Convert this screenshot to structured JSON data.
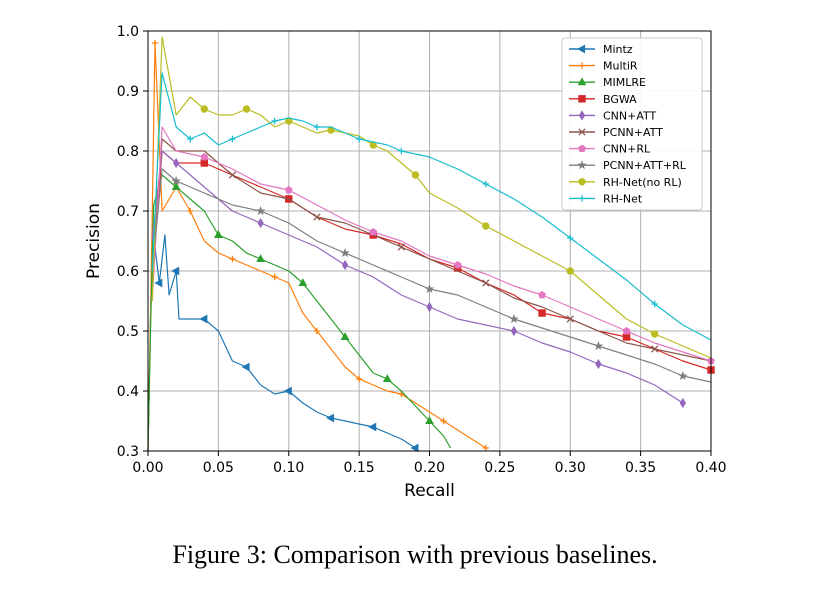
{
  "caption": "Figure 3: Comparison with previous baselines.",
  "chart_data": {
    "type": "line",
    "title": "",
    "xlabel": "Recall",
    "ylabel": "Precision",
    "xlim": [
      0.0,
      0.4
    ],
    "ylim": [
      0.3,
      1.0
    ],
    "xticks": [
      "0.00",
      "0.05",
      "0.10",
      "0.15",
      "0.20",
      "0.25",
      "0.30",
      "0.35",
      "0.40"
    ],
    "yticks": [
      "0.3",
      "0.4",
      "0.5",
      "0.6",
      "0.7",
      "0.8",
      "0.9",
      "1.0"
    ],
    "grid": true,
    "legend_position": "top-right",
    "series": [
      {
        "name": "Mintz",
        "color": "#1f77b4",
        "marker": "tri-left",
        "points": [
          [
            0.0,
            0.3
          ],
          [
            0.002,
            0.55
          ],
          [
            0.005,
            0.64
          ],
          [
            0.008,
            0.58
          ],
          [
            0.012,
            0.66
          ],
          [
            0.015,
            0.56
          ],
          [
            0.02,
            0.6
          ],
          [
            0.022,
            0.52
          ],
          [
            0.03,
            0.52
          ],
          [
            0.04,
            0.52
          ],
          [
            0.05,
            0.5
          ],
          [
            0.06,
            0.45
          ],
          [
            0.07,
            0.44
          ],
          [
            0.08,
            0.41
          ],
          [
            0.09,
            0.395
          ],
          [
            0.1,
            0.4
          ],
          [
            0.11,
            0.38
          ],
          [
            0.12,
            0.365
          ],
          [
            0.13,
            0.355
          ],
          [
            0.14,
            0.35
          ],
          [
            0.15,
            0.345
          ],
          [
            0.16,
            0.34
          ],
          [
            0.17,
            0.33
          ],
          [
            0.18,
            0.32
          ],
          [
            0.19,
            0.305
          ]
        ]
      },
      {
        "name": "MultiR",
        "color": "#ff7f0e",
        "marker": "plus",
        "points": [
          [
            0.0,
            0.3
          ],
          [
            0.002,
            0.55
          ],
          [
            0.005,
            0.98
          ],
          [
            0.01,
            0.7
          ],
          [
            0.02,
            0.74
          ],
          [
            0.03,
            0.7
          ],
          [
            0.04,
            0.65
          ],
          [
            0.05,
            0.63
          ],
          [
            0.06,
            0.62
          ],
          [
            0.07,
            0.61
          ],
          [
            0.08,
            0.6
          ],
          [
            0.09,
            0.59
          ],
          [
            0.1,
            0.58
          ],
          [
            0.11,
            0.53
          ],
          [
            0.12,
            0.5
          ],
          [
            0.13,
            0.47
          ],
          [
            0.14,
            0.44
          ],
          [
            0.15,
            0.42
          ],
          [
            0.16,
            0.41
          ],
          [
            0.17,
            0.4
          ],
          [
            0.18,
            0.395
          ],
          [
            0.19,
            0.38
          ],
          [
            0.2,
            0.365
          ],
          [
            0.21,
            0.35
          ],
          [
            0.22,
            0.335
          ],
          [
            0.23,
            0.32
          ],
          [
            0.24,
            0.305
          ]
        ]
      },
      {
        "name": "MIMLRE",
        "color": "#2ca02c",
        "marker": "tri-up",
        "points": [
          [
            0.0,
            0.3
          ],
          [
            0.002,
            0.52
          ],
          [
            0.004,
            0.71
          ],
          [
            0.01,
            0.76
          ],
          [
            0.02,
            0.74
          ],
          [
            0.03,
            0.72
          ],
          [
            0.04,
            0.7
          ],
          [
            0.05,
            0.66
          ],
          [
            0.06,
            0.65
          ],
          [
            0.07,
            0.63
          ],
          [
            0.08,
            0.62
          ],
          [
            0.09,
            0.61
          ],
          [
            0.1,
            0.6
          ],
          [
            0.11,
            0.58
          ],
          [
            0.12,
            0.55
          ],
          [
            0.13,
            0.52
          ],
          [
            0.14,
            0.49
          ],
          [
            0.15,
            0.46
          ],
          [
            0.16,
            0.43
          ],
          [
            0.17,
            0.42
          ],
          [
            0.18,
            0.4
          ],
          [
            0.19,
            0.375
          ],
          [
            0.2,
            0.35
          ],
          [
            0.21,
            0.325
          ],
          [
            0.215,
            0.305
          ]
        ]
      },
      {
        "name": "BGWA",
        "color": "#d62728",
        "marker": "square",
        "points": [
          [
            0.003,
            0.6
          ],
          [
            0.01,
            0.8
          ],
          [
            0.02,
            0.78
          ],
          [
            0.04,
            0.78
          ],
          [
            0.06,
            0.76
          ],
          [
            0.08,
            0.74
          ],
          [
            0.1,
            0.72
          ],
          [
            0.12,
            0.69
          ],
          [
            0.14,
            0.67
          ],
          [
            0.16,
            0.66
          ],
          [
            0.18,
            0.645
          ],
          [
            0.2,
            0.62
          ],
          [
            0.22,
            0.605
          ],
          [
            0.24,
            0.58
          ],
          [
            0.26,
            0.56
          ],
          [
            0.28,
            0.53
          ],
          [
            0.3,
            0.52
          ],
          [
            0.32,
            0.5
          ],
          [
            0.34,
            0.49
          ],
          [
            0.36,
            0.47
          ],
          [
            0.38,
            0.45
          ],
          [
            0.4,
            0.435
          ]
        ]
      },
      {
        "name": "CNN+ATT",
        "color": "#9467bd",
        "marker": "diamond",
        "points": [
          [
            0.003,
            0.65
          ],
          [
            0.01,
            0.8
          ],
          [
            0.02,
            0.78
          ],
          [
            0.04,
            0.74
          ],
          [
            0.06,
            0.7
          ],
          [
            0.08,
            0.68
          ],
          [
            0.1,
            0.66
          ],
          [
            0.12,
            0.64
          ],
          [
            0.14,
            0.61
          ],
          [
            0.16,
            0.59
          ],
          [
            0.18,
            0.56
          ],
          [
            0.2,
            0.54
          ],
          [
            0.22,
            0.52
          ],
          [
            0.24,
            0.51
          ],
          [
            0.26,
            0.5
          ],
          [
            0.28,
            0.48
          ],
          [
            0.3,
            0.465
          ],
          [
            0.32,
            0.445
          ],
          [
            0.34,
            0.43
          ],
          [
            0.36,
            0.41
          ],
          [
            0.38,
            0.38
          ]
        ]
      },
      {
        "name": "PCNN+ATT",
        "color": "#8c564b",
        "marker": "x",
        "points": [
          [
            0.003,
            0.6
          ],
          [
            0.01,
            0.82
          ],
          [
            0.02,
            0.8
          ],
          [
            0.04,
            0.8
          ],
          [
            0.06,
            0.76
          ],
          [
            0.08,
            0.73
          ],
          [
            0.1,
            0.72
          ],
          [
            0.12,
            0.69
          ],
          [
            0.14,
            0.68
          ],
          [
            0.16,
            0.66
          ],
          [
            0.18,
            0.64
          ],
          [
            0.2,
            0.62
          ],
          [
            0.22,
            0.6
          ],
          [
            0.24,
            0.58
          ],
          [
            0.26,
            0.555
          ],
          [
            0.28,
            0.54
          ],
          [
            0.3,
            0.52
          ],
          [
            0.32,
            0.5
          ],
          [
            0.34,
            0.48
          ],
          [
            0.36,
            0.47
          ],
          [
            0.38,
            0.46
          ],
          [
            0.4,
            0.45
          ]
        ]
      },
      {
        "name": "CNN+RL",
        "color": "#e377c2",
        "marker": "pentagon",
        "points": [
          [
            0.003,
            0.55
          ],
          [
            0.01,
            0.84
          ],
          [
            0.02,
            0.8
          ],
          [
            0.04,
            0.79
          ],
          [
            0.06,
            0.77
          ],
          [
            0.08,
            0.745
          ],
          [
            0.1,
            0.735
          ],
          [
            0.12,
            0.71
          ],
          [
            0.14,
            0.685
          ],
          [
            0.16,
            0.665
          ],
          [
            0.18,
            0.65
          ],
          [
            0.2,
            0.625
          ],
          [
            0.22,
            0.61
          ],
          [
            0.24,
            0.595
          ],
          [
            0.26,
            0.575
          ],
          [
            0.28,
            0.56
          ],
          [
            0.3,
            0.54
          ],
          [
            0.32,
            0.52
          ],
          [
            0.34,
            0.5
          ],
          [
            0.36,
            0.48
          ],
          [
            0.38,
            0.465
          ],
          [
            0.4,
            0.45
          ]
        ]
      },
      {
        "name": "PCNN+ATT+RL",
        "color": "#7f7f7f",
        "marker": "star",
        "points": [
          [
            0.003,
            0.6
          ],
          [
            0.01,
            0.77
          ],
          [
            0.02,
            0.75
          ],
          [
            0.04,
            0.73
          ],
          [
            0.06,
            0.71
          ],
          [
            0.08,
            0.7
          ],
          [
            0.1,
            0.68
          ],
          [
            0.12,
            0.65
          ],
          [
            0.14,
            0.63
          ],
          [
            0.16,
            0.61
          ],
          [
            0.18,
            0.59
          ],
          [
            0.2,
            0.57
          ],
          [
            0.22,
            0.56
          ],
          [
            0.24,
            0.54
          ],
          [
            0.26,
            0.52
          ],
          [
            0.28,
            0.505
          ],
          [
            0.3,
            0.49
          ],
          [
            0.32,
            0.475
          ],
          [
            0.34,
            0.46
          ],
          [
            0.36,
            0.445
          ],
          [
            0.38,
            0.425
          ],
          [
            0.4,
            0.415
          ]
        ]
      },
      {
        "name": "RH-Net(no RL)",
        "color": "#bcbd22",
        "marker": "circle",
        "points": [
          [
            0.003,
            0.55
          ],
          [
            0.01,
            0.99
          ],
          [
            0.02,
            0.86
          ],
          [
            0.03,
            0.89
          ],
          [
            0.04,
            0.87
          ],
          [
            0.05,
            0.86
          ],
          [
            0.06,
            0.86
          ],
          [
            0.07,
            0.87
          ],
          [
            0.08,
            0.86
          ],
          [
            0.09,
            0.84
          ],
          [
            0.1,
            0.85
          ],
          [
            0.11,
            0.84
          ],
          [
            0.12,
            0.83
          ],
          [
            0.13,
            0.835
          ],
          [
            0.14,
            0.83
          ],
          [
            0.15,
            0.825
          ],
          [
            0.16,
            0.81
          ],
          [
            0.17,
            0.8
          ],
          [
            0.18,
            0.78
          ],
          [
            0.19,
            0.76
          ],
          [
            0.2,
            0.73
          ],
          [
            0.22,
            0.705
          ],
          [
            0.24,
            0.675
          ],
          [
            0.26,
            0.65
          ],
          [
            0.28,
            0.625
          ],
          [
            0.3,
            0.6
          ],
          [
            0.32,
            0.56
          ],
          [
            0.34,
            0.52
          ],
          [
            0.36,
            0.495
          ],
          [
            0.38,
            0.475
          ],
          [
            0.4,
            0.455
          ]
        ]
      },
      {
        "name": "RH-Net",
        "color": "#17becf",
        "marker": "plus",
        "points": [
          [
            0.003,
            0.6
          ],
          [
            0.01,
            0.93
          ],
          [
            0.02,
            0.84
          ],
          [
            0.03,
            0.82
          ],
          [
            0.04,
            0.83
          ],
          [
            0.05,
            0.81
          ],
          [
            0.06,
            0.82
          ],
          [
            0.07,
            0.83
          ],
          [
            0.08,
            0.84
          ],
          [
            0.09,
            0.85
          ],
          [
            0.1,
            0.855
          ],
          [
            0.11,
            0.85
          ],
          [
            0.12,
            0.84
          ],
          [
            0.13,
            0.84
          ],
          [
            0.14,
            0.83
          ],
          [
            0.15,
            0.82
          ],
          [
            0.16,
            0.815
          ],
          [
            0.17,
            0.81
          ],
          [
            0.18,
            0.8
          ],
          [
            0.2,
            0.79
          ],
          [
            0.22,
            0.77
          ],
          [
            0.24,
            0.745
          ],
          [
            0.26,
            0.72
          ],
          [
            0.28,
            0.69
          ],
          [
            0.3,
            0.655
          ],
          [
            0.32,
            0.62
          ],
          [
            0.34,
            0.585
          ],
          [
            0.36,
            0.545
          ],
          [
            0.38,
            0.51
          ],
          [
            0.4,
            0.485
          ]
        ]
      }
    ]
  }
}
